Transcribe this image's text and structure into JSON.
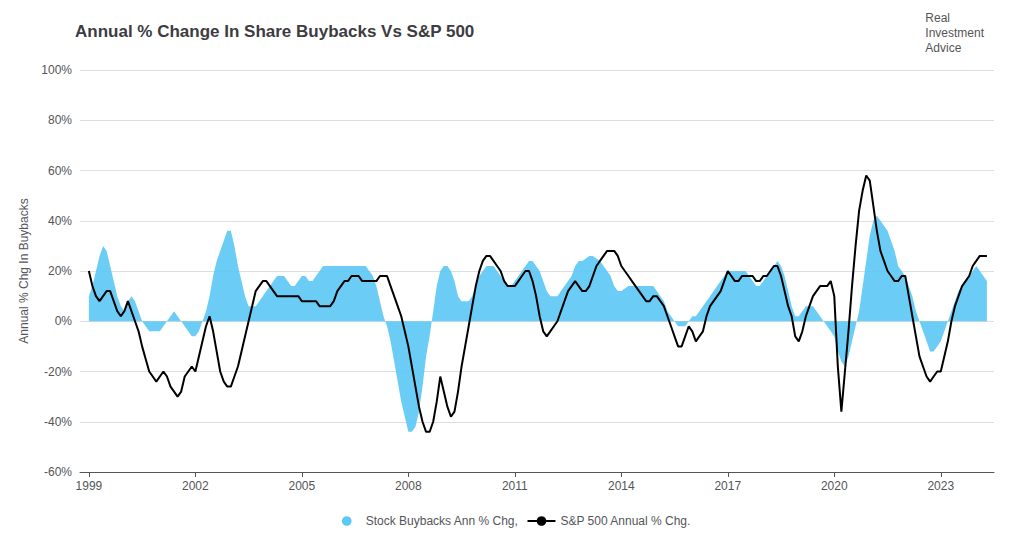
{
  "chart_data": {
    "type": "line",
    "title": "Annual % Change In Share Buybacks Vs S&P 500",
    "ylabel": "Annual % Chg In Buybacks",
    "annotations": [
      "Real\nInvestment\nAdvice"
    ],
    "xlim": [
      1998.75,
      2024.5
    ],
    "xticks": [
      1999,
      2002,
      2005,
      2008,
      2011,
      2014,
      2017,
      2020,
      2023
    ],
    "ylim": [
      -60,
      100
    ],
    "yticks": [
      {
        "value": -60,
        "label": "-60%"
      },
      {
        "value": -40,
        "label": "-40%"
      },
      {
        "value": -20,
        "label": "-20%"
      },
      {
        "value": 0,
        "label": "0%"
      },
      {
        "value": 20,
        "label": "20%"
      },
      {
        "value": 40,
        "label": "40%"
      },
      {
        "value": 60,
        "label": "60%"
      },
      {
        "value": 80,
        "label": "80%"
      },
      {
        "value": 100,
        "label": "100%"
      }
    ],
    "grid": true,
    "legend": "bottom",
    "x": [
      1999.0,
      1999.1,
      1999.2,
      1999.3,
      1999.4,
      1999.5,
      1999.6,
      1999.7,
      1999.8,
      1999.9,
      2000.0,
      2000.1,
      2000.2,
      2000.3,
      2000.4,
      2000.5,
      2000.6,
      2000.7,
      2000.8,
      2000.9,
      2001.0,
      2001.1,
      2001.2,
      2001.3,
      2001.4,
      2001.5,
      2001.6,
      2001.7,
      2001.8,
      2001.9,
      2002.0,
      2002.1,
      2002.2,
      2002.3,
      2002.4,
      2002.5,
      2002.6,
      2002.7,
      2002.8,
      2002.9,
      2003.0,
      2003.1,
      2003.2,
      2003.3,
      2003.4,
      2003.5,
      2003.6,
      2003.7,
      2003.8,
      2003.9,
      2004.0,
      2004.1,
      2004.2,
      2004.3,
      2004.4,
      2004.5,
      2004.6,
      2004.7,
      2004.8,
      2004.9,
      2005.0,
      2005.1,
      2005.2,
      2005.3,
      2005.4,
      2005.5,
      2005.6,
      2005.7,
      2005.8,
      2005.9,
      2006.0,
      2006.1,
      2006.2,
      2006.3,
      2006.4,
      2006.5,
      2006.6,
      2006.7,
      2006.8,
      2006.9,
      2007.0,
      2007.1,
      2007.2,
      2007.3,
      2007.4,
      2007.5,
      2007.6,
      2007.7,
      2007.8,
      2007.9,
      2008.0,
      2008.1,
      2008.2,
      2008.3,
      2008.4,
      2008.5,
      2008.6,
      2008.7,
      2008.8,
      2008.9,
      2009.0,
      2009.1,
      2009.2,
      2009.3,
      2009.4,
      2009.5,
      2009.6,
      2009.7,
      2009.8,
      2009.9,
      2010.0,
      2010.1,
      2010.2,
      2010.3,
      2010.4,
      2010.5,
      2010.6,
      2010.7,
      2010.8,
      2010.9,
      2011.0,
      2011.1,
      2011.2,
      2011.3,
      2011.4,
      2011.5,
      2011.6,
      2011.7,
      2011.8,
      2011.9,
      2012.0,
      2012.1,
      2012.2,
      2012.3,
      2012.4,
      2012.5,
      2012.6,
      2012.7,
      2012.8,
      2012.9,
      2013.0,
      2013.1,
      2013.2,
      2013.3,
      2013.4,
      2013.5,
      2013.6,
      2013.7,
      2013.8,
      2013.9,
      2014.0,
      2014.1,
      2014.2,
      2014.3,
      2014.4,
      2014.5,
      2014.6,
      2014.7,
      2014.8,
      2014.9,
      2015.0,
      2015.1,
      2015.2,
      2015.3,
      2015.4,
      2015.5,
      2015.6,
      2015.7,
      2015.8,
      2015.9,
      2016.0,
      2016.1,
      2016.2,
      2016.3,
      2016.4,
      2016.5,
      2016.6,
      2016.7,
      2016.8,
      2016.9,
      2017.0,
      2017.1,
      2017.2,
      2017.3,
      2017.4,
      2017.5,
      2017.6,
      2017.7,
      2017.8,
      2017.9,
      2018.0,
      2018.1,
      2018.2,
      2018.3,
      2018.4,
      2018.5,
      2018.6,
      2018.7,
      2018.8,
      2018.9,
      2019.0,
      2019.1,
      2019.2,
      2019.3,
      2019.4,
      2019.5,
      2019.6,
      2019.7,
      2019.8,
      2019.9,
      2020.0,
      2020.1,
      2020.2,
      2020.3,
      2020.4,
      2020.5,
      2020.6,
      2020.7,
      2020.8,
      2020.9,
      2021.0,
      2021.1,
      2021.2,
      2021.3,
      2021.4,
      2021.5,
      2021.6,
      2021.7,
      2021.8,
      2021.9,
      2022.0,
      2022.1,
      2022.2,
      2022.3,
      2022.4,
      2022.5,
      2022.6,
      2022.7,
      2022.8,
      2022.9,
      2023.0,
      2023.1,
      2023.2,
      2023.3,
      2023.4,
      2023.5,
      2023.6,
      2023.7,
      2023.8,
      2023.9,
      2024.0,
      2024.1,
      2024.2,
      2024.3
    ],
    "series": [
      {
        "name": "Stock Buybacks Ann % Chg,",
        "type": "area",
        "color": "#5bc8f5",
        "values": [
          10,
          14,
          20,
          26,
          30,
          28,
          22,
          16,
          10,
          6,
          4,
          8,
          10,
          8,
          4,
          0,
          -2,
          -4,
          -4,
          -4,
          -4,
          -2,
          0,
          2,
          4,
          2,
          0,
          -2,
          -4,
          -6,
          -6,
          -4,
          0,
          4,
          10,
          18,
          24,
          28,
          32,
          36,
          36,
          30,
          22,
          16,
          10,
          6,
          6,
          6,
          8,
          10,
          12,
          14,
          16,
          18,
          18,
          18,
          16,
          14,
          14,
          16,
          18,
          18,
          16,
          16,
          18,
          20,
          22,
          22,
          22,
          22,
          22,
          22,
          22,
          22,
          22,
          22,
          22,
          22,
          22,
          20,
          18,
          14,
          8,
          2,
          -2,
          -8,
          -16,
          -24,
          -32,
          -38,
          -44,
          -44,
          -42,
          -36,
          -26,
          -14,
          -6,
          4,
          14,
          20,
          22,
          22,
          20,
          16,
          10,
          8,
          8,
          8,
          10,
          14,
          18,
          20,
          22,
          22,
          22,
          20,
          18,
          16,
          14,
          14,
          16,
          18,
          20,
          22,
          24,
          24,
          22,
          20,
          16,
          12,
          10,
          10,
          10,
          12,
          14,
          16,
          18,
          22,
          24,
          24,
          25,
          26,
          26,
          25,
          24,
          22,
          20,
          18,
          14,
          12,
          12,
          13,
          14,
          14,
          14,
          14,
          14,
          14,
          14,
          14,
          12,
          10,
          8,
          4,
          2,
          0,
          -2,
          -2,
          -2,
          0,
          2,
          2,
          4,
          6,
          8,
          10,
          12,
          14,
          16,
          18,
          20,
          20,
          20,
          20,
          20,
          20,
          18,
          16,
          14,
          14,
          16,
          18,
          20,
          22,
          24,
          22,
          18,
          12,
          6,
          2,
          2,
          4,
          6,
          6,
          6,
          4,
          2,
          0,
          -2,
          -4,
          -6,
          -12,
          -16,
          -18,
          -14,
          -8,
          -2,
          4,
          14,
          24,
          34,
          40,
          42,
          40,
          38,
          36,
          32,
          28,
          22,
          20,
          18,
          14,
          10,
          4,
          0,
          -4,
          -8,
          -12,
          -12,
          -10,
          -8,
          -4,
          0,
          4,
          8,
          12,
          14,
          16,
          18,
          20,
          22,
          20,
          18,
          16
        ]
      },
      {
        "name": "S&P 500 Annual % Chg.",
        "type": "line",
        "color": "#000000",
        "values": [
          20,
          14,
          10,
          8,
          10,
          12,
          12,
          8,
          4,
          2,
          4,
          8,
          4,
          0,
          -4,
          -10,
          -15,
          -20,
          -22,
          -24,
          -22,
          -20,
          -22,
          -26,
          -28,
          -30,
          -28,
          -22,
          -20,
          -18,
          -20,
          -14,
          -8,
          -2,
          2,
          -4,
          -12,
          -20,
          -24,
          -26,
          -26,
          -22,
          -18,
          -12,
          -6,
          0,
          6,
          12,
          14,
          16,
          16,
          14,
          12,
          10,
          10,
          10,
          10,
          10,
          10,
          10,
          8,
          8,
          8,
          8,
          8,
          6,
          6,
          6,
          6,
          8,
          12,
          14,
          16,
          16,
          18,
          18,
          18,
          16,
          16,
          16,
          16,
          16,
          18,
          18,
          18,
          14,
          10,
          6,
          2,
          -4,
          -10,
          -18,
          -26,
          -34,
          -40,
          -44,
          -44,
          -40,
          -32,
          -22,
          -28,
          -34,
          -38,
          -36,
          -28,
          -18,
          -10,
          -2,
          6,
          14,
          20,
          24,
          26,
          26,
          24,
          22,
          20,
          16,
          14,
          14,
          14,
          16,
          18,
          20,
          20,
          16,
          10,
          2,
          -4,
          -6,
          -4,
          -2,
          0,
          4,
          8,
          12,
          14,
          16,
          14,
          12,
          12,
          14,
          18,
          22,
          24,
          26,
          28,
          28,
          28,
          26,
          22,
          20,
          18,
          16,
          14,
          12,
          10,
          8,
          8,
          10,
          10,
          8,
          6,
          2,
          -2,
          -6,
          -10,
          -10,
          -6,
          -2,
          -4,
          -8,
          -6,
          -4,
          2,
          6,
          8,
          10,
          12,
          16,
          20,
          18,
          16,
          16,
          18,
          18,
          18,
          18,
          16,
          16,
          18,
          18,
          20,
          22,
          22,
          18,
          12,
          6,
          2,
          -6,
          -8,
          -4,
          2,
          6,
          10,
          12,
          14,
          14,
          14,
          16,
          10,
          -18,
          -36,
          -20,
          -4,
          14,
          30,
          44,
          52,
          58,
          56,
          46,
          36,
          28,
          24,
          20,
          18,
          16,
          16,
          18,
          18,
          10,
          2,
          -6,
          -14,
          -18,
          -22,
          -24,
          -22,
          -20,
          -20,
          -14,
          -8,
          0,
          6,
          10,
          14,
          16,
          18,
          22,
          24,
          26,
          26,
          26
        ]
      }
    ]
  }
}
